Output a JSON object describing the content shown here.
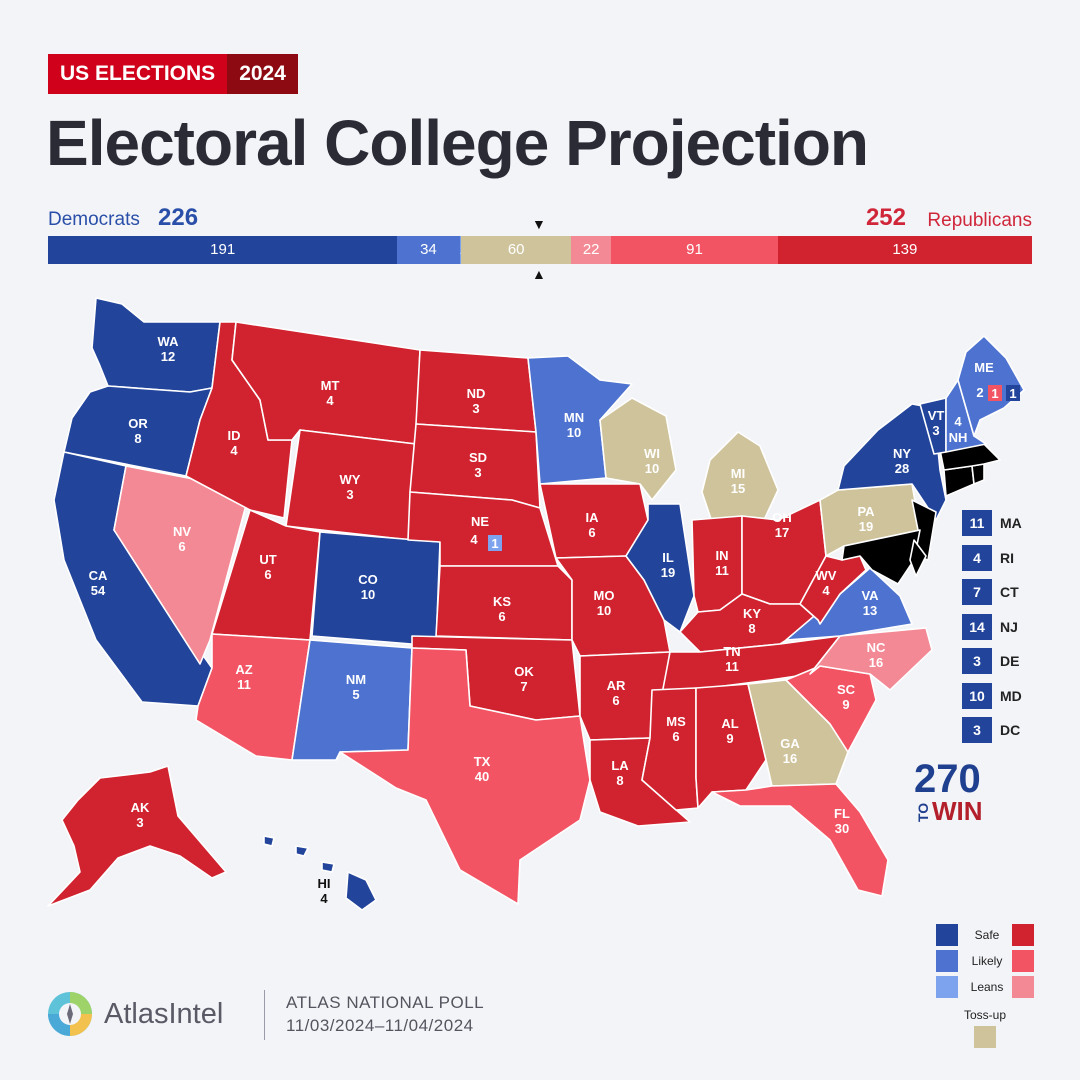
{
  "header": {
    "tag_left": "US ELECTIONS",
    "tag_right": "2024",
    "title": "Electoral College Projection"
  },
  "tally": {
    "dem_label": "Democrats",
    "dem_total": "226",
    "rep_label": "Republicans",
    "rep_total": "252",
    "marker_down": "▼",
    "marker_up": "▲"
  },
  "bar_segments": [
    {
      "value": 191,
      "label": "191",
      "color": "#22449b"
    },
    {
      "value": 34,
      "label": "34",
      "color": "#4d72cf"
    },
    {
      "value": 1,
      "label": "1",
      "color": "#7ea3ee"
    },
    {
      "value": 60,
      "label": "60",
      "color": "#cfc39c"
    },
    {
      "value": 22,
      "label": "22",
      "color": "#f38994"
    },
    {
      "value": 91,
      "label": "91",
      "color": "#f25464"
    },
    {
      "value": 139,
      "label": "139",
      "color": "#d0222f"
    }
  ],
  "colors": {
    "safe_d": "#22449b",
    "likely_d": "#4d72cf",
    "leans_d": "#7ea3ee",
    "tossup": "#cfc39c",
    "leans_r": "#f38994",
    "likely_r": "#f25464",
    "safe_r": "#d0222f"
  },
  "states": {
    "WA": {
      "abbr": "WA",
      "ev": "12",
      "rating": "safe_d"
    },
    "OR": {
      "abbr": "OR",
      "ev": "8",
      "rating": "safe_d"
    },
    "CA": {
      "abbr": "CA",
      "ev": "54",
      "rating": "safe_d"
    },
    "NV": {
      "abbr": "NV",
      "ev": "6",
      "rating": "leans_r"
    },
    "ID": {
      "abbr": "ID",
      "ev": "4",
      "rating": "safe_r"
    },
    "MT": {
      "abbr": "MT",
      "ev": "4",
      "rating": "safe_r"
    },
    "WY": {
      "abbr": "WY",
      "ev": "3",
      "rating": "safe_r"
    },
    "UT": {
      "abbr": "UT",
      "ev": "6",
      "rating": "safe_r"
    },
    "CO": {
      "abbr": "CO",
      "ev": "10",
      "rating": "safe_d"
    },
    "AZ": {
      "abbr": "AZ",
      "ev": "11",
      "rating": "likely_r"
    },
    "NM": {
      "abbr": "NM",
      "ev": "5",
      "rating": "likely_d"
    },
    "ND": {
      "abbr": "ND",
      "ev": "3",
      "rating": "safe_r"
    },
    "SD": {
      "abbr": "SD",
      "ev": "3",
      "rating": "safe_r"
    },
    "NE": {
      "abbr": "NE",
      "ev": "4",
      "rating": "safe_r",
      "district": "1"
    },
    "KS": {
      "abbr": "KS",
      "ev": "6",
      "rating": "safe_r"
    },
    "OK": {
      "abbr": "OK",
      "ev": "7",
      "rating": "safe_r"
    },
    "TX": {
      "abbr": "TX",
      "ev": "40",
      "rating": "likely_r"
    },
    "MN": {
      "abbr": "MN",
      "ev": "10",
      "rating": "likely_d"
    },
    "IA": {
      "abbr": "IA",
      "ev": "6",
      "rating": "safe_r"
    },
    "MO": {
      "abbr": "MO",
      "ev": "10",
      "rating": "safe_r"
    },
    "AR": {
      "abbr": "AR",
      "ev": "6",
      "rating": "safe_r"
    },
    "LA": {
      "abbr": "LA",
      "ev": "8",
      "rating": "safe_r"
    },
    "WI": {
      "abbr": "WI",
      "ev": "10",
      "rating": "tossup"
    },
    "IL": {
      "abbr": "IL",
      "ev": "19",
      "rating": "safe_d"
    },
    "MI": {
      "abbr": "MI",
      "ev": "15",
      "rating": "tossup"
    },
    "IN": {
      "abbr": "IN",
      "ev": "11",
      "rating": "safe_r"
    },
    "OH": {
      "abbr": "OH",
      "ev": "17",
      "rating": "safe_r"
    },
    "KY": {
      "abbr": "KY",
      "ev": "8",
      "rating": "safe_r"
    },
    "TN": {
      "abbr": "TN",
      "ev": "11",
      "rating": "safe_r"
    },
    "MS": {
      "abbr": "MS",
      "ev": "6",
      "rating": "safe_r"
    },
    "AL": {
      "abbr": "AL",
      "ev": "9",
      "rating": "safe_r"
    },
    "GA": {
      "abbr": "GA",
      "ev": "16",
      "rating": "tossup"
    },
    "FL": {
      "abbr": "FL",
      "ev": "30",
      "rating": "likely_r"
    },
    "SC": {
      "abbr": "SC",
      "ev": "9",
      "rating": "likely_r"
    },
    "NC": {
      "abbr": "NC",
      "ev": "16",
      "rating": "leans_r"
    },
    "VA": {
      "abbr": "VA",
      "ev": "13",
      "rating": "likely_d"
    },
    "WV": {
      "abbr": "WV",
      "ev": "4",
      "rating": "safe_r"
    },
    "PA": {
      "abbr": "PA",
      "ev": "19",
      "rating": "tossup"
    },
    "NY": {
      "abbr": "NY",
      "ev": "28",
      "rating": "safe_d"
    },
    "VT": {
      "abbr": "VT",
      "ev": "3",
      "rating": "safe_d"
    },
    "NH": {
      "abbr": "NH",
      "ev": "4",
      "rating": "likely_d"
    },
    "ME": {
      "abbr": "ME",
      "ev": "2",
      "rating": "likely_d",
      "district_r": "1",
      "district_d": "1"
    },
    "AK": {
      "abbr": "AK",
      "ev": "3",
      "rating": "safe_r"
    },
    "HI": {
      "abbr": "HI",
      "ev": "4",
      "rating": "safe_d"
    }
  },
  "small_states": [
    {
      "abbr": "MA",
      "ev": "11"
    },
    {
      "abbr": "RI",
      "ev": "4"
    },
    {
      "abbr": "CT",
      "ev": "7"
    },
    {
      "abbr": "NJ",
      "ev": "14"
    },
    {
      "abbr": "DE",
      "ev": "3"
    },
    {
      "abbr": "MD",
      "ev": "10"
    },
    {
      "abbr": "DC",
      "ev": "3"
    }
  ],
  "logo_270": {
    "top": "270",
    "to": "TO",
    "win": "WIN"
  },
  "legend": {
    "safe": "Safe",
    "likely": "Likely",
    "leans": "Leans",
    "tossup": "Toss-up"
  },
  "footer": {
    "brand": "AtlasIntel",
    "poll_title": "ATLAS NATIONAL POLL",
    "poll_dates": "11/03/2024–11/04/2024"
  }
}
